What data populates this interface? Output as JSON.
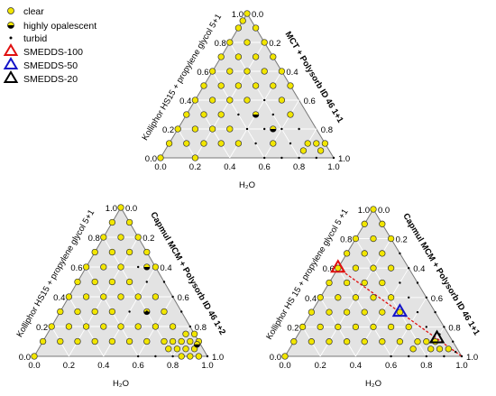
{
  "colors": {
    "triangle_fill": "#e3e3e3",
    "grid": "#ffffff",
    "edge": "#777777",
    "clear_fill": "#f2e600",
    "clear_stroke": "#333333",
    "turbid": "#000000",
    "smedds_100": "#e01010",
    "smedds_50": "#1515c8",
    "smedds_20": "#000000",
    "dilution_line": "#e01010"
  },
  "legend": {
    "items": [
      {
        "label": "clear",
        "marker": "yellow-circle"
      },
      {
        "label": "highly opalescent",
        "marker": "half-circle"
      },
      {
        "label": "turbid",
        "marker": "small-dot"
      },
      {
        "label": "SMEDDS-100",
        "marker": "red-triangle"
      },
      {
        "label": "SMEDDS-50",
        "marker": "blue-triangle"
      },
      {
        "label": "SMEDDS-20",
        "marker": "black-triangle"
      }
    ]
  },
  "chart_data": [
    {
      "type": "scatter",
      "subtype": "ternary",
      "panel": "top",
      "left_axis_label": "Kolliphor HS15 + propylene glycol 5+1",
      "right_axis_label": "MCT + Polysorb ID 46 1+1",
      "bottom_axis_label": "H₂O",
      "ticks": [
        "0.0",
        "0.2",
        "0.4",
        "0.6",
        "0.8",
        "1.0"
      ],
      "bottom_ticks": [
        "0.0",
        "0.2",
        "0.4",
        "0.6",
        "0.8",
        "1.0"
      ],
      "left_ticks": [
        "0.0",
        "0.2",
        "0.4",
        "0.6",
        "0.8",
        "1.0"
      ],
      "right_ticks": [
        "0.0",
        "0.2",
        "0.4",
        "0.6",
        "0.8",
        "1.0"
      ],
      "series": [
        {
          "name": "clear",
          "points": [
            [
              0.0,
              1.0
            ],
            [
              0.0,
              0.95
            ],
            [
              0.0,
              0.9
            ],
            [
              0.0,
              0.8
            ],
            [
              0.0,
              0.7
            ],
            [
              0.0,
              0.6
            ],
            [
              0.0,
              0.5
            ],
            [
              0.0,
              0.4
            ],
            [
              0.0,
              0.3
            ],
            [
              0.0,
              0.2
            ],
            [
              0.0,
              0.1
            ],
            [
              0.0,
              0.0
            ],
            [
              0.1,
              0.9
            ],
            [
              0.1,
              0.8
            ],
            [
              0.1,
              0.7
            ],
            [
              0.1,
              0.6
            ],
            [
              0.1,
              0.5
            ],
            [
              0.1,
              0.4
            ],
            [
              0.1,
              0.3
            ],
            [
              0.1,
              0.2
            ],
            [
              0.1,
              0.1
            ],
            [
              0.2,
              0.8
            ],
            [
              0.2,
              0.7
            ],
            [
              0.2,
              0.6
            ],
            [
              0.2,
              0.5
            ],
            [
              0.2,
              0.4
            ],
            [
              0.2,
              0.3
            ],
            [
              0.2,
              0.2
            ],
            [
              0.2,
              0.1
            ],
            [
              0.2,
              0.0
            ],
            [
              0.3,
              0.7
            ],
            [
              0.3,
              0.6
            ],
            [
              0.3,
              0.5
            ],
            [
              0.3,
              0.4
            ],
            [
              0.3,
              0.2
            ],
            [
              0.3,
              0.1
            ],
            [
              0.4,
              0.6
            ],
            [
              0.4,
              0.5
            ],
            [
              0.4,
              0.1
            ],
            [
              0.5,
              0.5
            ],
            [
              0.5,
              0.4
            ],
            [
              0.6,
              0.3
            ],
            [
              0.6,
              0.1
            ],
            [
              0.8,
              0.1
            ],
            [
              0.8,
              0.05
            ],
            [
              0.85,
              0.1
            ],
            [
              0.9,
              0.1
            ],
            [
              0.9,
              0.05
            ]
          ]
        },
        {
          "name": "highly opalescent",
          "points": [
            [
              0.4,
              0.3
            ],
            [
              0.55,
              0.2
            ]
          ]
        },
        {
          "name": "turbid",
          "points": [
            [
              0.4,
              0.4
            ],
            [
              0.4,
              0.2
            ],
            [
              0.5,
              0.3
            ],
            [
              0.5,
              0.2
            ],
            [
              0.5,
              0.1
            ],
            [
              0.6,
              0.2
            ],
            [
              0.7,
              0.2
            ],
            [
              0.7,
              0.1
            ],
            [
              0.3,
              0.3
            ],
            [
              0.6,
              0.0
            ],
            [
              0.7,
              0.0
            ],
            [
              0.8,
              0.0
            ],
            [
              0.9,
              0.0
            ],
            [
              1.0,
              0.0
            ]
          ]
        }
      ]
    },
    {
      "type": "scatter",
      "subtype": "ternary",
      "panel": "bottom-left",
      "left_axis_label": "Kolliphor HS15 + propylene glycol 5+1",
      "right_axis_label": "Capmul MCM + Polysorb ID 46 1+2",
      "bottom_axis_label": "H₂O",
      "ticks": [
        "0.0",
        "0.2",
        "0.4",
        "0.6",
        "0.8",
        "1.0"
      ],
      "bottom_ticks": [
        "0.0",
        "0.2",
        "0.4",
        "0.6",
        "0.8",
        "1.0"
      ],
      "left_ticks": [
        "0.0",
        "0.2",
        "0.4",
        "0.6",
        "0.8",
        "1.0"
      ],
      "right_ticks": [
        "0.0",
        "0.2",
        "0.4",
        "0.6",
        "0.8",
        "1.0"
      ],
      "series": [
        {
          "name": "clear",
          "points": [
            [
              0.0,
              1.0
            ],
            [
              0.0,
              0.9
            ],
            [
              0.0,
              0.8
            ],
            [
              0.0,
              0.7
            ],
            [
              0.0,
              0.6
            ],
            [
              0.0,
              0.5
            ],
            [
              0.0,
              0.4
            ],
            [
              0.0,
              0.3
            ],
            [
              0.0,
              0.2
            ],
            [
              0.0,
              0.1
            ],
            [
              0.0,
              0.0
            ],
            [
              0.1,
              0.9
            ],
            [
              0.1,
              0.8
            ],
            [
              0.1,
              0.7
            ],
            [
              0.1,
              0.6
            ],
            [
              0.1,
              0.5
            ],
            [
              0.1,
              0.4
            ],
            [
              0.1,
              0.3
            ],
            [
              0.1,
              0.2
            ],
            [
              0.1,
              0.1
            ],
            [
              0.2,
              0.8
            ],
            [
              0.2,
              0.7
            ],
            [
              0.2,
              0.6
            ],
            [
              0.2,
              0.5
            ],
            [
              0.2,
              0.4
            ],
            [
              0.2,
              0.3
            ],
            [
              0.2,
              0.2
            ],
            [
              0.2,
              0.1
            ],
            [
              0.3,
              0.7
            ],
            [
              0.3,
              0.5
            ],
            [
              0.3,
              0.4
            ],
            [
              0.3,
              0.3
            ],
            [
              0.3,
              0.2
            ],
            [
              0.3,
              0.1
            ],
            [
              0.4,
              0.6
            ],
            [
              0.4,
              0.4
            ],
            [
              0.4,
              0.2
            ],
            [
              0.4,
              0.1
            ],
            [
              0.5,
              0.4
            ],
            [
              0.5,
              0.2
            ],
            [
              0.5,
              0.1
            ],
            [
              0.6,
              0.3
            ],
            [
              0.6,
              0.2
            ],
            [
              0.6,
              0.1
            ],
            [
              0.7,
              0.2
            ],
            [
              0.7,
              0.1
            ],
            [
              0.8,
              0.1
            ],
            [
              0.85,
              0.1
            ],
            [
              0.8,
              0.05
            ],
            [
              0.85,
              0.05
            ],
            [
              0.9,
              0.05
            ],
            [
              0.9,
              0.1
            ],
            [
              0.85,
              0.15
            ],
            [
              0.8,
              0.15
            ],
            [
              0.75,
              0.1
            ],
            [
              0.75,
              0.05
            ],
            [
              0.95,
              0.0
            ],
            [
              0.9,
              0.0
            ],
            [
              0.85,
              0.0
            ]
          ]
        },
        {
          "name": "highly opalescent",
          "points": [
            [
              0.35,
              0.6
            ],
            [
              0.5,
              0.3
            ],
            [
              0.9,
              0.08
            ]
          ]
        },
        {
          "name": "turbid",
          "points": [
            [
              0.3,
              0.6
            ],
            [
              0.4,
              0.5
            ],
            [
              0.5,
              0.5
            ],
            [
              0.6,
              0.4
            ],
            [
              0.7,
              0.3
            ],
            [
              0.8,
              0.2
            ],
            [
              0.4,
              0.3
            ],
            [
              0.5,
              0.3
            ],
            [
              0.6,
              0.0
            ],
            [
              0.7,
              0.0
            ],
            [
              0.8,
              0.0
            ],
            [
              1.0,
              0.0
            ]
          ]
        }
      ]
    },
    {
      "type": "scatter",
      "subtype": "ternary",
      "panel": "bottom-right",
      "left_axis_label": "Kolliphor HS 15 + propylene glycol 5 +1",
      "right_axis_label": "Capmul MCM + Polysorb ID 46 1+1",
      "bottom_axis_label": "H₂O",
      "ticks": [
        "0.0",
        "0.2",
        "0.4",
        "0.6",
        "0.8",
        "1.0"
      ],
      "bottom_ticks": [
        "0.0",
        "0.2",
        "0.4",
        "0.6",
        "0.8",
        "1.0"
      ],
      "left_ticks": [
        "0.0",
        "0.2",
        "0.4",
        "0.6",
        "0.8",
        "1.0"
      ],
      "right_ticks": [
        "0.0",
        "0.2",
        "0.4",
        "0.6",
        "0.8",
        "1.0"
      ],
      "series": [
        {
          "name": "clear",
          "points": [
            [
              0.0,
              1.0
            ],
            [
              0.0,
              0.9
            ],
            [
              0.0,
              0.8
            ],
            [
              0.0,
              0.7
            ],
            [
              0.0,
              0.6
            ],
            [
              0.0,
              0.5
            ],
            [
              0.0,
              0.4
            ],
            [
              0.0,
              0.3
            ],
            [
              0.0,
              0.2
            ],
            [
              0.0,
              0.1
            ],
            [
              0.0,
              0.0
            ],
            [
              0.1,
              0.9
            ],
            [
              0.1,
              0.8
            ],
            [
              0.1,
              0.7
            ],
            [
              0.1,
              0.6
            ],
            [
              0.1,
              0.5
            ],
            [
              0.1,
              0.4
            ],
            [
              0.1,
              0.3
            ],
            [
              0.1,
              0.2
            ],
            [
              0.1,
              0.1
            ],
            [
              0.2,
              0.8
            ],
            [
              0.2,
              0.7
            ],
            [
              0.2,
              0.6
            ],
            [
              0.2,
              0.5
            ],
            [
              0.2,
              0.4
            ],
            [
              0.2,
              0.3
            ],
            [
              0.2,
              0.2
            ],
            [
              0.2,
              0.1
            ],
            [
              0.3,
              0.6
            ],
            [
              0.3,
              0.5
            ],
            [
              0.3,
              0.4
            ],
            [
              0.3,
              0.3
            ],
            [
              0.3,
              0.2
            ],
            [
              0.3,
              0.1
            ],
            [
              0.4,
              0.4
            ],
            [
              0.4,
              0.3
            ],
            [
              0.4,
              0.2
            ],
            [
              0.4,
              0.1
            ],
            [
              0.5,
              0.3
            ],
            [
              0.5,
              0.2
            ],
            [
              0.5,
              0.1
            ],
            [
              0.6,
              0.2
            ],
            [
              0.6,
              0.1
            ],
            [
              0.7,
              0.1
            ],
            [
              0.8,
              0.1
            ],
            [
              0.8,
              0.05
            ],
            [
              0.85,
              0.05
            ],
            [
              0.9,
              0.05
            ],
            [
              0.7,
              0.05
            ],
            [
              0.75,
              0.1
            ]
          ]
        },
        {
          "name": "turbid",
          "points": [
            [
              0.3,
              0.7
            ],
            [
              0.4,
              0.6
            ],
            [
              0.4,
              0.5
            ],
            [
              0.5,
              0.5
            ],
            [
              0.5,
              0.4
            ],
            [
              0.6,
              0.4
            ],
            [
              0.6,
              0.3
            ],
            [
              0.7,
              0.3
            ],
            [
              0.7,
              0.2
            ],
            [
              0.8,
              0.2
            ],
            [
              0.8,
              0.15
            ],
            [
              0.9,
              0.1
            ],
            [
              0.9,
              0.0
            ],
            [
              1.0,
              0.0
            ],
            [
              0.95,
              0.03
            ],
            [
              0.6,
              0.0
            ],
            [
              0.7,
              0.0
            ],
            [
              0.8,
              0.0
            ]
          ]
        },
        {
          "name": "SMEDDS-100",
          "points": [
            [
              0.0,
              0.6
            ]
          ]
        },
        {
          "name": "SMEDDS-50",
          "points": [
            [
              0.5,
              0.3
            ]
          ]
        },
        {
          "name": "SMEDDS-20",
          "points": [
            [
              0.8,
              0.12
            ]
          ]
        }
      ],
      "dilution_line": [
        [
          0.0,
          0.6
        ],
        [
          0.5,
          0.3
        ],
        [
          0.8,
          0.12
        ],
        [
          1.0,
          0.0
        ]
      ]
    }
  ]
}
